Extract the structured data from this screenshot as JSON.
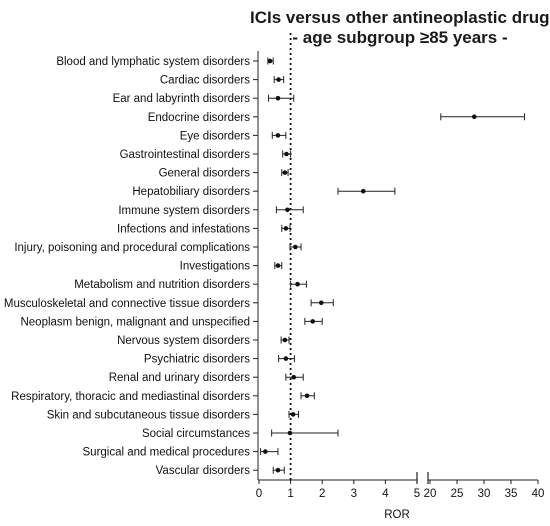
{
  "chart_data": {
    "type": "forest",
    "title_line1": "ICIs versus other antineoplastic drugs",
    "title_line2": "- age subgroup ≥85 years -",
    "xlabel": "ROR",
    "reference_line": 1,
    "x_axis_segments": [
      {
        "range": [
          0,
          5
        ],
        "ticks": [
          "0",
          "1",
          "2",
          "3",
          "4",
          "5"
        ]
      },
      {
        "range": [
          20,
          40
        ],
        "ticks": [
          "20",
          "25",
          "30",
          "35",
          "40"
        ]
      }
    ],
    "categories": [
      "Blood and lymphatic system disorders",
      "Cardiac disorders",
      "Ear and labyrinth disorders",
      "Endocrine disorders",
      "Eye disorders",
      "Gastrointestinal disorders",
      "General disorders",
      "Hepatobiliary disorders",
      "Immune system disorders",
      "Infections and infestations",
      "Injury, poisoning and procedural complications",
      "Investigations",
      "Metabolism and nutrition disorders",
      "Musculoskeletal and connective tissue disorders",
      "Neoplasm benign, malignant and unspecified",
      "Nervous system disorders",
      "Psychiatric disorders",
      "Renal and urinary disorders",
      "Respiratory, thoracic and mediastinal disorders",
      "Skin and subcutaneous tissue disorders",
      "Social circumstances",
      "Surgical and medical procedures",
      "Vascular disorders"
    ],
    "ror": [
      0.35,
      0.62,
      0.6,
      28.2,
      0.6,
      0.87,
      0.82,
      3.3,
      0.9,
      0.85,
      1.15,
      0.6,
      1.22,
      1.97,
      1.7,
      0.82,
      0.85,
      1.1,
      1.52,
      1.08,
      0.98,
      0.2,
      0.6
    ],
    "ci_low": [
      0.28,
      0.48,
      0.3,
      22.0,
      0.42,
      0.75,
      0.72,
      2.5,
      0.55,
      0.72,
      0.98,
      0.5,
      1.0,
      1.65,
      1.45,
      0.7,
      0.62,
      0.85,
      1.33,
      0.95,
      0.4,
      0.05,
      0.45
    ],
    "ci_high": [
      0.45,
      0.78,
      1.1,
      37.5,
      0.85,
      1.0,
      0.92,
      4.3,
      1.4,
      0.98,
      1.33,
      0.72,
      1.5,
      2.35,
      2.0,
      0.95,
      1.12,
      1.4,
      1.75,
      1.25,
      2.5,
      0.6,
      0.8
    ]
  }
}
